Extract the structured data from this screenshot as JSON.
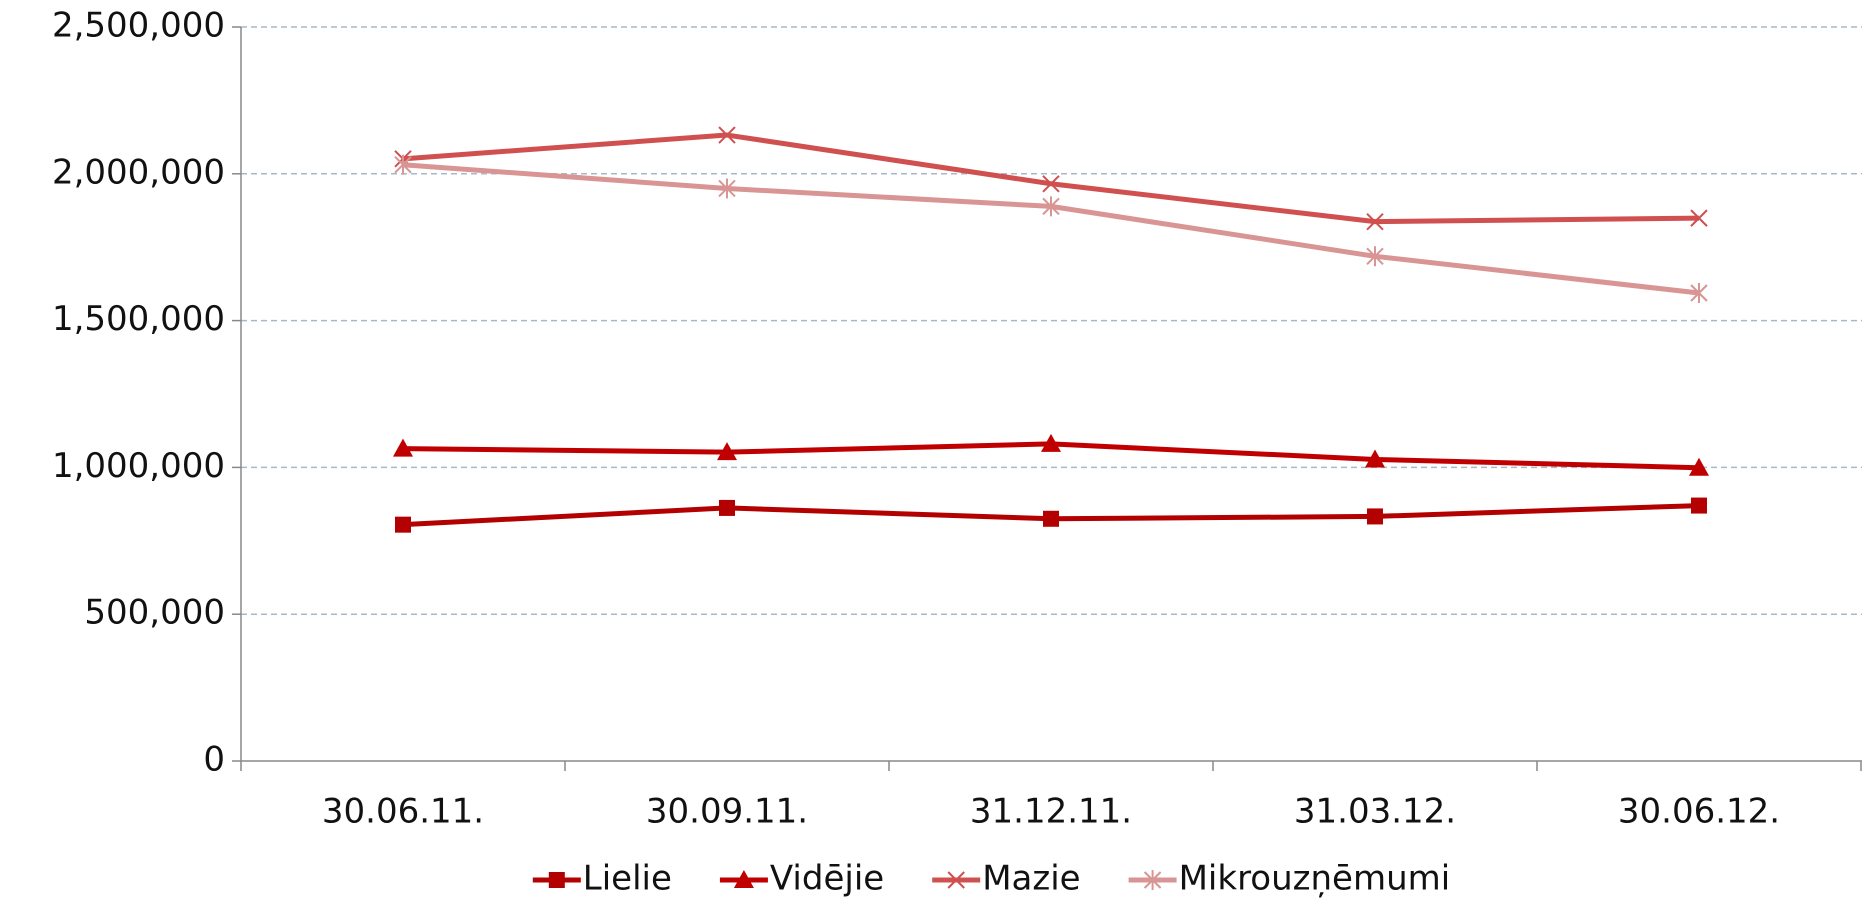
{
  "chart_data": {
    "type": "line",
    "categories": [
      "30.06.11.",
      "30.09.11.",
      "31.12.11.",
      "31.03.12.",
      "30.06.12."
    ],
    "series": [
      {
        "name": "Lielie",
        "color": "#b30000",
        "marker": "square",
        "values": [
          805000,
          862000,
          825000,
          833000,
          870000
        ]
      },
      {
        "name": "Vidējie",
        "color": "#c00000",
        "marker": "triangle",
        "values": [
          1064000,
          1052000,
          1080000,
          1027000,
          999000
        ]
      },
      {
        "name": "Mazie",
        "color": "#d05050",
        "marker": "x",
        "values": [
          2051000,
          2132000,
          1966000,
          1837000,
          1849000
        ]
      },
      {
        "name": "Mikrouzņēmumi",
        "color": "#d99594",
        "marker": "star",
        "values": [
          2031000,
          1950000,
          1889000,
          1719000,
          1594000
        ]
      }
    ],
    "ylim": [
      0,
      2500000
    ],
    "yticks": [
      0,
      {
        "value": 500000,
        "label": "500,000"
      },
      {
        "value": 1000000,
        "label": "1,000,000"
      },
      {
        "value": 1500000,
        "label": "1,500,000"
      },
      {
        "value": 2000000,
        "label": "2,000,000"
      },
      {
        "value": 2500000,
        "label": "2,500,000"
      }
    ],
    "grid": true,
    "legend": "bottom"
  }
}
